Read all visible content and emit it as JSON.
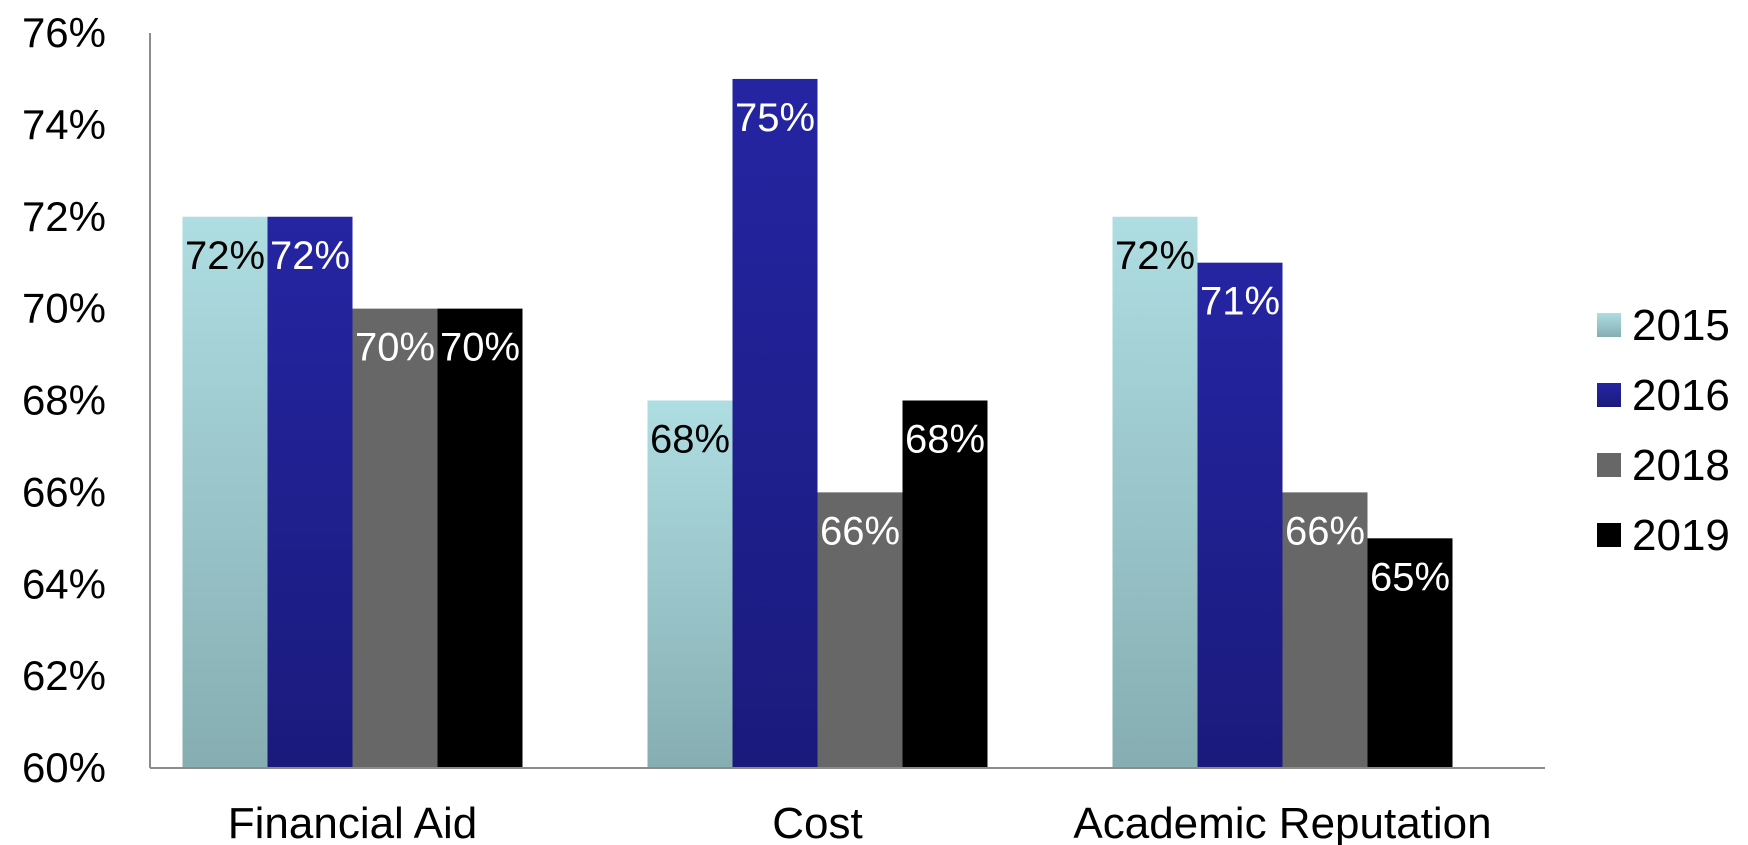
{
  "chart_data": {
    "type": "bar",
    "title": "",
    "xlabel": "",
    "ylabel": "",
    "ylim": [
      60,
      76
    ],
    "y_ticks": [
      "60%",
      "62%",
      "64%",
      "66%",
      "68%",
      "70%",
      "72%",
      "74%",
      "76%"
    ],
    "y_tick_values": [
      60,
      62,
      64,
      66,
      68,
      70,
      72,
      74,
      76
    ],
    "categories": [
      "Financial Aid",
      "Cost",
      "Academic Reputation"
    ],
    "series": [
      {
        "name": "2015",
        "values": [
          72,
          68,
          72
        ],
        "labels": [
          "72%",
          "68%",
          "72%"
        ],
        "color": "#aedde2",
        "color_dark": "#86aeb2",
        "label_color": "#000000"
      },
      {
        "name": "2016",
        "values": [
          72,
          75,
          71
        ],
        "labels": [
          "72%",
          "75%",
          "71%"
        ],
        "color": "#2525a3",
        "color_dark": "#1a1a7c",
        "label_color": "#ffffff"
      },
      {
        "name": "2018",
        "values": [
          70,
          66,
          66
        ],
        "labels": [
          "70%",
          "66%",
          "66%"
        ],
        "color": "#676767",
        "color_dark": "#676767",
        "label_color": "#ffffff"
      },
      {
        "name": "2019",
        "values": [
          70,
          68,
          65
        ],
        "labels": [
          "70%",
          "68%",
          "65%"
        ],
        "color": "#000000",
        "color_dark": "#000000",
        "label_color": "#ffffff"
      }
    ],
    "grid": false,
    "legend_position": "right"
  }
}
